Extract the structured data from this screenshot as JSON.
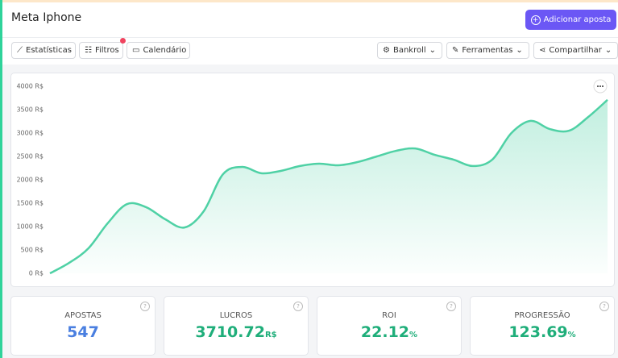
{
  "header": {
    "title": "Meta Iphone",
    "button": "Adicionar aposta"
  },
  "toolbar": {
    "left": [
      "Estatísticas",
      "Filtros",
      "Calendário"
    ],
    "right": [
      "Bankroll",
      "Ferramentas",
      "Compartilhar"
    ]
  },
  "chart_data": {
    "type": "area",
    "color": "#4fd1a5",
    "ylim": [
      0,
      4000
    ],
    "yticks": [
      {
        "value": 0,
        "label": "0 R$"
      },
      {
        "value": 500,
        "label": "500 R$"
      },
      {
        "value": 1000,
        "label": "1000 R$"
      },
      {
        "value": 1500,
        "label": "1500 R$"
      },
      {
        "value": 2000,
        "label": "2000 R$"
      },
      {
        "value": 2500,
        "label": "2500 R$"
      },
      {
        "value": 3000,
        "label": "3000 R$"
      },
      {
        "value": 3500,
        "label": "3500 R$"
      },
      {
        "value": 4000,
        "label": "4000 R$"
      }
    ],
    "values": [
      0,
      225,
      535,
      1070,
      1480,
      1415,
      1155,
      980,
      1330,
      2120,
      2275,
      2140,
      2190,
      2295,
      2345,
      2310,
      2380,
      2500,
      2620,
      2670,
      2535,
      2430,
      2295,
      2430,
      3000,
      3260,
      3085,
      3050,
      3345,
      3710
    ]
  },
  "stats": [
    {
      "label": "APOSTAS",
      "value": 547
    },
    {
      "label": "LUCROS",
      "value": 3710.72,
      "unit": "R$"
    },
    {
      "label": "ROI",
      "value": 22.12,
      "unit": "%"
    },
    {
      "label": "PROGRESSÃO",
      "value": 123.69,
      "unit": "%"
    }
  ]
}
